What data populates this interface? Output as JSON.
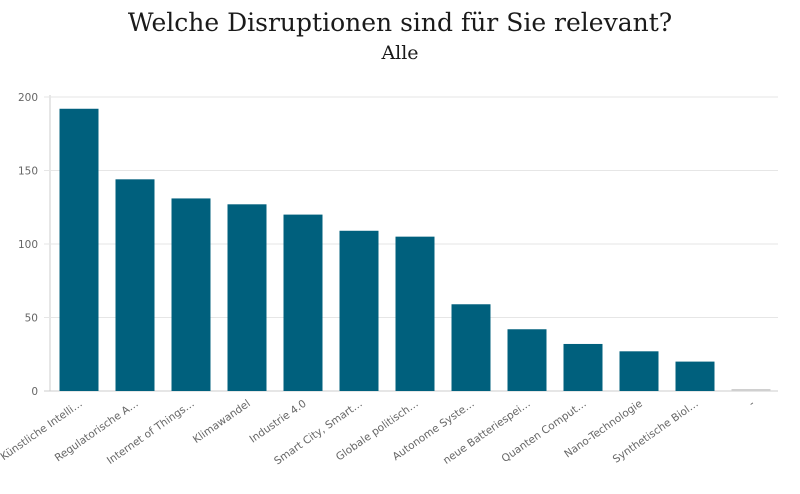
{
  "chart_data": {
    "type": "bar",
    "title": "Welche Disruptionen sind für Sie relevant?",
    "subtitle": "Alle",
    "xlabel": "",
    "ylabel": "",
    "ylim": [
      0,
      200
    ],
    "yticks": [
      0,
      50,
      100,
      150,
      200
    ],
    "grid": true,
    "categories": [
      "Künstliche Intelli…",
      "Regulatorische A…",
      "Internet of Things…",
      "Klimawandel",
      "Industrie 4.0",
      "Smart City, Smart…",
      "Globale politisch…",
      "Autonome Syste…",
      "neue Batteriespei…",
      "Quanten Comput…",
      "Nano-Technologie",
      "Synthetische Biol…",
      "-"
    ],
    "values": [
      192,
      144,
      131,
      127,
      120,
      109,
      105,
      59,
      42,
      32,
      27,
      20,
      1
    ],
    "colors": {
      "bar": "#00607d",
      "empty_bar": "#d0d0d0",
      "grid": "#e6e6e6",
      "axis": "#cccccc"
    }
  }
}
